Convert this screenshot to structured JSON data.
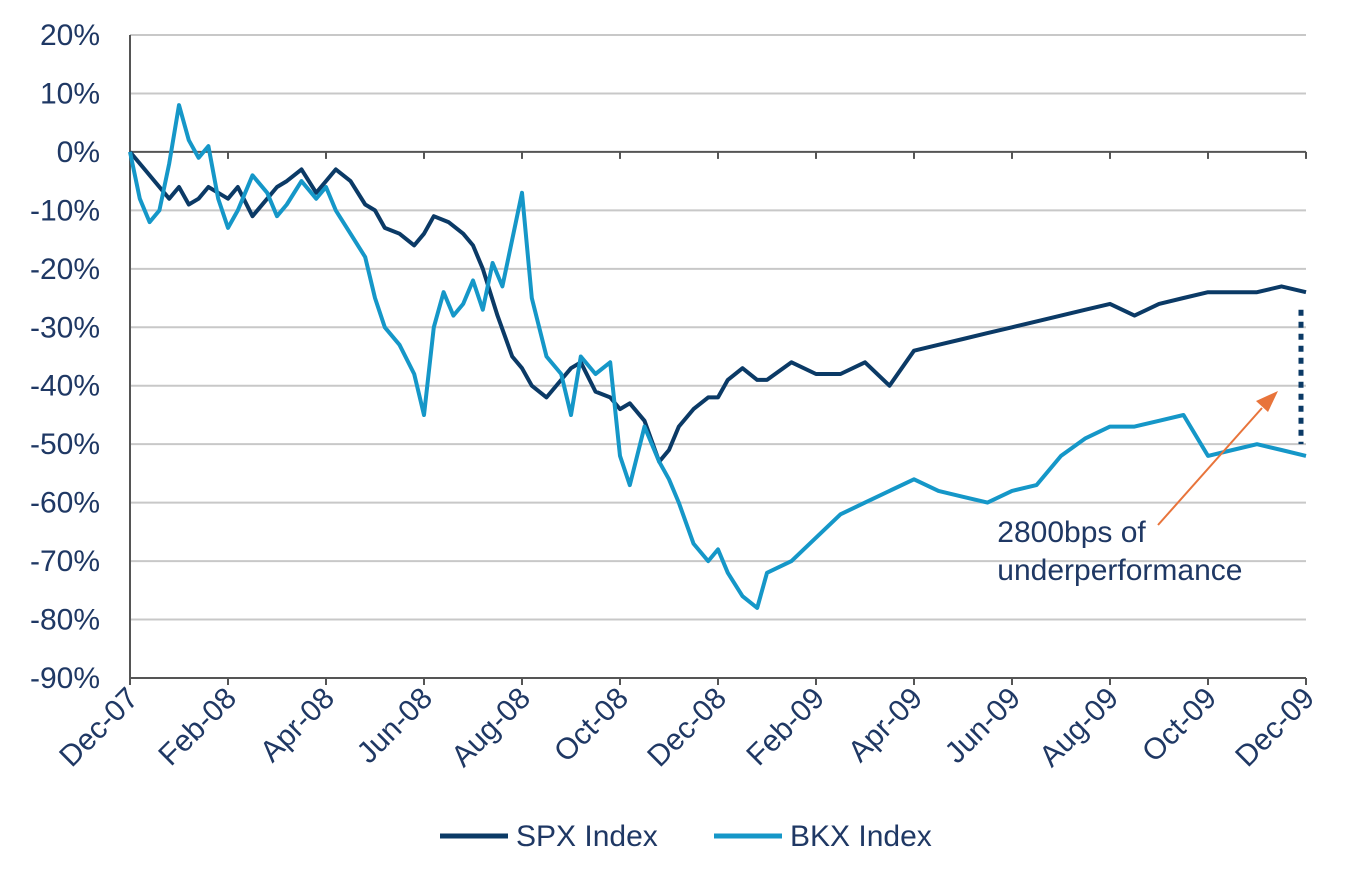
{
  "chart_data": {
    "type": "line",
    "title": "",
    "xlabel": "",
    "ylabel": "",
    "y_unit": "%",
    "ylim": [
      -90,
      20
    ],
    "yticks": [
      "20%",
      "10%",
      "0%",
      "-10%",
      "-20%",
      "-30%",
      "-40%",
      "-50%",
      "-60%",
      "-70%",
      "-80%",
      "-90%"
    ],
    "xticks": [
      "Dec-07",
      "Feb-08",
      "Apr-08",
      "Jun-08",
      "Aug-08",
      "Oct-08",
      "Dec-08",
      "Feb-09",
      "Apr-09",
      "Jun-09",
      "Aug-09",
      "Oct-09",
      "Dec-09"
    ],
    "grid": "horizontal",
    "legend_position": "bottom",
    "colors": {
      "spx": "#0b3a66",
      "bkx": "#1597c8",
      "arrow": "#e8743b"
    },
    "series": [
      {
        "name": "SPX Index",
        "color": "#0b3a66",
        "x": [
          0,
          0.3,
          0.5,
          0.8,
          1,
          1.2,
          1.4,
          1.6,
          1.8,
          2,
          2.2,
          2.5,
          2.8,
          3,
          3.2,
          3.5,
          3.8,
          4,
          4.2,
          4.5,
          4.8,
          5,
          5.2,
          5.5,
          5.8,
          6,
          6.2,
          6.5,
          6.8,
          7,
          7.2,
          7.5,
          7.8,
          8,
          8.2,
          8.5,
          8.8,
          9,
          9.2,
          9.5,
          9.8,
          10,
          10.2,
          10.5,
          10.8,
          11,
          11.2,
          11.5,
          11.8,
          12,
          12.2,
          12.5,
          12.8,
          13,
          13.5,
          14,
          14.5,
          15,
          15.5,
          16,
          16.5,
          17,
          17.5,
          18,
          18.5,
          19,
          19.5,
          20,
          20.5,
          21,
          21.5,
          22,
          22.5,
          23,
          23.5,
          24
        ],
        "values": [
          0,
          -3,
          -5,
          -8,
          -6,
          -9,
          -8,
          -6,
          -7,
          -8,
          -6,
          -11,
          -8,
          -6,
          -5,
          -3,
          -7,
          -5,
          -3,
          -5,
          -9,
          -10,
          -13,
          -14,
          -16,
          -14,
          -11,
          -12,
          -14,
          -16,
          -20,
          -28,
          -35,
          -37,
          -40,
          -42,
          -39,
          -37,
          -36,
          -41,
          -42,
          -44,
          -43,
          -46,
          -53,
          -51,
          -47,
          -44,
          -42,
          -42,
          -39,
          -37,
          -39,
          -39,
          -36,
          -38,
          -38,
          -36,
          -40,
          -34,
          -33,
          -32,
          -31,
          -30,
          -29,
          -28,
          -27,
          -26,
          -28,
          -26,
          -25,
          -24,
          -24,
          -24,
          -23,
          -24
        ]
      },
      {
        "name": "BKX Index",
        "color": "#1597c8",
        "x": [
          0,
          0.2,
          0.4,
          0.6,
          0.8,
          1,
          1.2,
          1.4,
          1.6,
          1.8,
          2,
          2.2,
          2.5,
          2.8,
          3,
          3.2,
          3.5,
          3.8,
          4,
          4.2,
          4.5,
          4.8,
          5,
          5.2,
          5.5,
          5.8,
          6,
          6.2,
          6.4,
          6.6,
          6.8,
          7,
          7.2,
          7.4,
          7.6,
          8,
          8.2,
          8.5,
          8.8,
          9,
          9.2,
          9.5,
          9.8,
          10,
          10.2,
          10.5,
          10.8,
          11,
          11.2,
          11.5,
          11.8,
          12,
          12.2,
          12.5,
          12.8,
          13,
          13.5,
          14,
          14.5,
          15,
          15.5,
          16,
          16.5,
          17,
          17.5,
          18,
          18.5,
          19,
          19.5,
          20,
          20.5,
          21,
          21.5,
          22,
          22.5,
          23,
          23.5,
          24
        ],
        "values": [
          0,
          -8,
          -12,
          -10,
          -2,
          8,
          2,
          -1,
          1,
          -8,
          -13,
          -10,
          -4,
          -7,
          -11,
          -9,
          -5,
          -8,
          -6,
          -10,
          -14,
          -18,
          -25,
          -30,
          -33,
          -38,
          -45,
          -30,
          -24,
          -28,
          -26,
          -22,
          -27,
          -19,
          -23,
          -7,
          -25,
          -35,
          -38,
          -45,
          -35,
          -38,
          -36,
          -52,
          -57,
          -47,
          -53,
          -56,
          -60,
          -67,
          -70,
          -68,
          -72,
          -76,
          -78,
          -72,
          -70,
          -66,
          -62,
          -60,
          -58,
          -56,
          -58,
          -59,
          -60,
          -58,
          -57,
          -52,
          -49,
          -47,
          -47,
          -46,
          -45,
          -52,
          -51,
          -50,
          -51,
          -52
        ]
      }
    ],
    "annotations": [
      {
        "text": "2800bps of",
        "x": 17.7,
        "y": -65
      },
      {
        "text": "underperformance",
        "x": 17.7,
        "y": -71.5
      }
    ]
  }
}
